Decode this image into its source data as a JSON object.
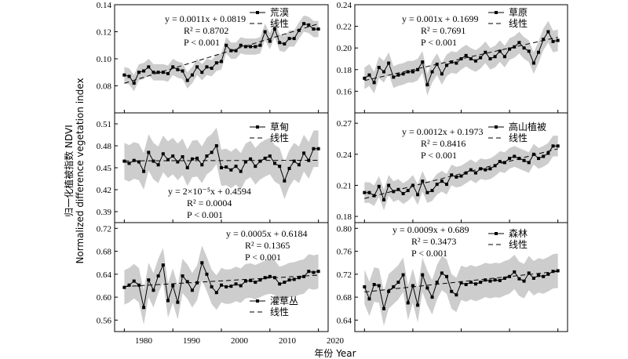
{
  "figure": {
    "xlabel": "年份 Year",
    "ylabel_cn": "归一化植被指数 NDVI",
    "ylabel_en": "Normalized difference vegetation index"
  },
  "chart_data": [
    {
      "type": "line",
      "legend": {
        "series": "荒漠",
        "fit": "线性"
      },
      "equation": {
        "line1": "y = 0.0011x + 0.0819",
        "line2": "R² = 0.8702",
        "line3": "P < 0.001"
      },
      "xlim": [
        1978,
        2022
      ],
      "ylim": [
        0.06,
        0.14
      ],
      "xticks": [
        1980,
        1990,
        2000,
        2010,
        2020
      ],
      "yticks": [
        0.08,
        0.1,
        0.12,
        0.14
      ],
      "ytick_labels": [
        "0.08",
        "0.10",
        "0.12",
        "0.14"
      ],
      "fit": {
        "slope": 0.0011,
        "intercept": 0.0819
      },
      "x": [
        1980,
        1981,
        1982,
        1983,
        1984,
        1985,
        1986,
        1987,
        1988,
        1989,
        1990,
        1991,
        1992,
        1993,
        1994,
        1995,
        1996,
        1997,
        1998,
        1999,
        2000,
        2001,
        2002,
        2003,
        2004,
        2005,
        2006,
        2007,
        2008,
        2009,
        2010,
        2011,
        2012,
        2013,
        2014,
        2015,
        2016,
        2017,
        2018,
        2019,
        2020
      ],
      "values": [
        0.088,
        0.087,
        0.082,
        0.09,
        0.091,
        0.094,
        0.09,
        0.09,
        0.09,
        0.089,
        0.094,
        0.092,
        0.091,
        0.084,
        0.088,
        0.094,
        0.09,
        0.094,
        0.093,
        0.097,
        0.098,
        0.11,
        0.106,
        0.106,
        0.11,
        0.109,
        0.109,
        0.109,
        0.11,
        0.12,
        0.113,
        0.122,
        0.112,
        0.111,
        0.115,
        0.115,
        0.121,
        0.126,
        0.125,
        0.122,
        0.122
      ],
      "band_width": 0.006
    },
    {
      "type": "line",
      "legend": {
        "series": "草原",
        "fit": "线性"
      },
      "equation": {
        "line1": "y = 0.001x + 0.1699",
        "line2": "R² = 0.7691",
        "line3": "P < 0.001"
      },
      "xlim": [
        1978,
        2022
      ],
      "ylim": [
        0.14,
        0.24
      ],
      "xticks": [
        1980,
        1990,
        2000,
        2010,
        2020
      ],
      "yticks": [
        0.16,
        0.18,
        0.2,
        0.22,
        0.24
      ],
      "ytick_labels": [
        "0.16",
        "0.18",
        "0.20",
        "0.22",
        "0.24"
      ],
      "fit": {
        "slope": 0.001,
        "intercept": 0.1699
      },
      "x": [
        1980,
        1981,
        1982,
        1983,
        1984,
        1985,
        1986,
        1987,
        1988,
        1989,
        1990,
        1991,
        1992,
        1993,
        1994,
        1995,
        1996,
        1997,
        1998,
        1999,
        2000,
        2001,
        2002,
        2003,
        2004,
        2005,
        2006,
        2007,
        2008,
        2009,
        2010,
        2011,
        2012,
        2013,
        2014,
        2015,
        2016,
        2017,
        2018,
        2019,
        2020
      ],
      "values": [
        0.172,
        0.175,
        0.168,
        0.182,
        0.178,
        0.186,
        0.173,
        0.175,
        0.176,
        0.178,
        0.178,
        0.18,
        0.187,
        0.166,
        0.178,
        0.185,
        0.176,
        0.184,
        0.187,
        0.186,
        0.19,
        0.193,
        0.19,
        0.188,
        0.191,
        0.196,
        0.19,
        0.192,
        0.197,
        0.192,
        0.199,
        0.201,
        0.205,
        0.2,
        0.197,
        0.186,
        0.196,
        0.208,
        0.215,
        0.206,
        0.207
      ],
      "band_width": 0.01
    },
    {
      "type": "line",
      "legend": {
        "series": "草甸",
        "fit": "线性"
      },
      "equation": {
        "line1": "y = 2×10⁻⁵x + 0.4594",
        "line2": "R² = 0.0004",
        "line3": "P < 0.001"
      },
      "xlim": [
        1978,
        2022
      ],
      "ylim": [
        0.375,
        0.525
      ],
      "xticks": [
        1980,
        1990,
        2000,
        2010,
        2020
      ],
      "yticks": [
        0.39,
        0.42,
        0.45,
        0.48,
        0.51
      ],
      "ytick_labels": [
        "0.39",
        "0.42",
        "0.45",
        "0.48",
        "0.51"
      ],
      "fit": {
        "slope": 2e-05,
        "intercept": 0.4594
      },
      "x": [
        1980,
        1981,
        1982,
        1983,
        1984,
        1985,
        1986,
        1987,
        1988,
        1989,
        1990,
        1991,
        1992,
        1993,
        1994,
        1995,
        1996,
        1997,
        1998,
        1999,
        2000,
        2001,
        2002,
        2003,
        2004,
        2005,
        2006,
        2007,
        2008,
        2009,
        2010,
        2011,
        2012,
        2013,
        2014,
        2015,
        2016,
        2017,
        2018,
        2019,
        2020
      ],
      "values": [
        0.459,
        0.456,
        0.46,
        0.458,
        0.445,
        0.471,
        0.459,
        0.454,
        0.469,
        0.461,
        0.466,
        0.458,
        0.465,
        0.45,
        0.462,
        0.463,
        0.454,
        0.466,
        0.471,
        0.48,
        0.45,
        0.451,
        0.447,
        0.452,
        0.445,
        0.458,
        0.462,
        0.452,
        0.459,
        0.463,
        0.466,
        0.456,
        0.452,
        0.432,
        0.449,
        0.459,
        0.454,
        0.47,
        0.46,
        0.476,
        0.476
      ],
      "band_width": 0.025
    },
    {
      "type": "line",
      "legend": {
        "series": "高山植被",
        "fit": "线性"
      },
      "equation": {
        "line1": "y = 0.0012x + 0.1973",
        "line2": "R² = 0.8416",
        "line3": "P < 0.001"
      },
      "xlim": [
        1978,
        2022
      ],
      "ylim": [
        0.174,
        0.28
      ],
      "xticks": [
        1980,
        1990,
        2000,
        2010,
        2020
      ],
      "yticks": [
        0.18,
        0.21,
        0.24,
        0.27
      ],
      "ytick_labels": [
        "0.18",
        "0.21",
        "0.24",
        "0.27"
      ],
      "fit": {
        "slope": 0.0012,
        "intercept": 0.1973
      },
      "x": [
        1980,
        1981,
        1982,
        1983,
        1984,
        1985,
        1986,
        1987,
        1988,
        1989,
        1990,
        1991,
        1992,
        1993,
        1994,
        1995,
        1996,
        1997,
        1998,
        1999,
        2000,
        2001,
        2002,
        2003,
        2004,
        2005,
        2006,
        2007,
        2008,
        2009,
        2010,
        2011,
        2012,
        2013,
        2014,
        2015,
        2016,
        2017,
        2018,
        2019,
        2020
      ],
      "values": [
        0.203,
        0.203,
        0.2,
        0.209,
        0.196,
        0.21,
        0.204,
        0.206,
        0.202,
        0.205,
        0.21,
        0.201,
        0.214,
        0.203,
        0.205,
        0.211,
        0.214,
        0.211,
        0.22,
        0.218,
        0.219,
        0.222,
        0.225,
        0.222,
        0.226,
        0.225,
        0.226,
        0.229,
        0.233,
        0.232,
        0.236,
        0.238,
        0.236,
        0.234,
        0.232,
        0.24,
        0.236,
        0.238,
        0.241,
        0.248,
        0.248
      ],
      "band_width": 0.01
    },
    {
      "type": "line",
      "legend": {
        "series": "灌草丛",
        "fit": "线性"
      },
      "equation": {
        "line1": "y = 0.0005x + 0.6184",
        "line2": "R² = 0.1365",
        "line3": "P < 0.001"
      },
      "xlim": [
        1978,
        2022
      ],
      "ylim": [
        0.54,
        0.73
      ],
      "xticks": [
        1980,
        1990,
        2000,
        2010,
        2020
      ],
      "yticks": [
        0.56,
        0.6,
        0.64,
        0.68,
        0.72
      ],
      "ytick_labels": [
        "0.56",
        "0.60",
        "0.64",
        "0.68",
        "0.72"
      ],
      "fit": {
        "slope": 0.0005,
        "intercept": 0.6184
      },
      "x": [
        1980,
        1981,
        1982,
        1983,
        1984,
        1985,
        1986,
        1987,
        1988,
        1989,
        1990,
        1991,
        1992,
        1993,
        1994,
        1995,
        1996,
        1997,
        1998,
        1999,
        2000,
        2001,
        2002,
        2003,
        2004,
        2005,
        2006,
        2007,
        2008,
        2009,
        2010,
        2011,
        2012,
        2013,
        2014,
        2015,
        2016,
        2017,
        2018,
        2019,
        2020
      ],
      "values": [
        0.617,
        0.621,
        0.628,
        0.621,
        0.582,
        0.63,
        0.612,
        0.637,
        0.656,
        0.594,
        0.62,
        0.591,
        0.637,
        0.627,
        0.612,
        0.625,
        0.66,
        0.64,
        0.618,
        0.608,
        0.621,
        0.618,
        0.619,
        0.623,
        0.62,
        0.628,
        0.629,
        0.626,
        0.63,
        0.634,
        0.636,
        0.634,
        0.623,
        0.626,
        0.63,
        0.631,
        0.634,
        0.636,
        0.645,
        0.643,
        0.645
      ],
      "band_width": 0.03
    },
    {
      "type": "line",
      "legend": {
        "series": "森林",
        "fit": "线性"
      },
      "equation": {
        "line1": "y = 0.0009x + 0.689",
        "line2": "R² = 0.3473",
        "line3": "P < 0.001"
      },
      "xlim": [
        1978,
        2022
      ],
      "ylim": [
        0.62,
        0.81
      ],
      "xticks": [
        1980,
        1990,
        2000,
        2010,
        2020
      ],
      "yticks": [
        0.64,
        0.68,
        0.72,
        0.76,
        0.8
      ],
      "ytick_labels": [
        "0.64",
        "0.68",
        "0.72",
        "0.76",
        "0.80"
      ],
      "fit": {
        "slope": 0.0009,
        "intercept": 0.689
      },
      "x": [
        1980,
        1981,
        1982,
        1983,
        1984,
        1985,
        1986,
        1987,
        1988,
        1989,
        1990,
        1991,
        1992,
        1993,
        1994,
        1995,
        1996,
        1997,
        1998,
        1999,
        2000,
        2001,
        2002,
        2003,
        2004,
        2005,
        2006,
        2007,
        2008,
        2009,
        2010,
        2011,
        2012,
        2013,
        2014,
        2015,
        2016,
        2017,
        2018,
        2019,
        2020
      ],
      "values": [
        0.698,
        0.677,
        0.702,
        0.7,
        0.66,
        0.69,
        0.698,
        0.706,
        0.719,
        0.67,
        0.7,
        0.666,
        0.719,
        0.696,
        0.68,
        0.706,
        0.722,
        0.716,
        0.69,
        0.684,
        0.705,
        0.702,
        0.706,
        0.703,
        0.706,
        0.71,
        0.708,
        0.71,
        0.709,
        0.713,
        0.716,
        0.724,
        0.712,
        0.708,
        0.722,
        0.713,
        0.718,
        0.716,
        0.72,
        0.725,
        0.726
      ],
      "band_width": 0.03
    }
  ]
}
